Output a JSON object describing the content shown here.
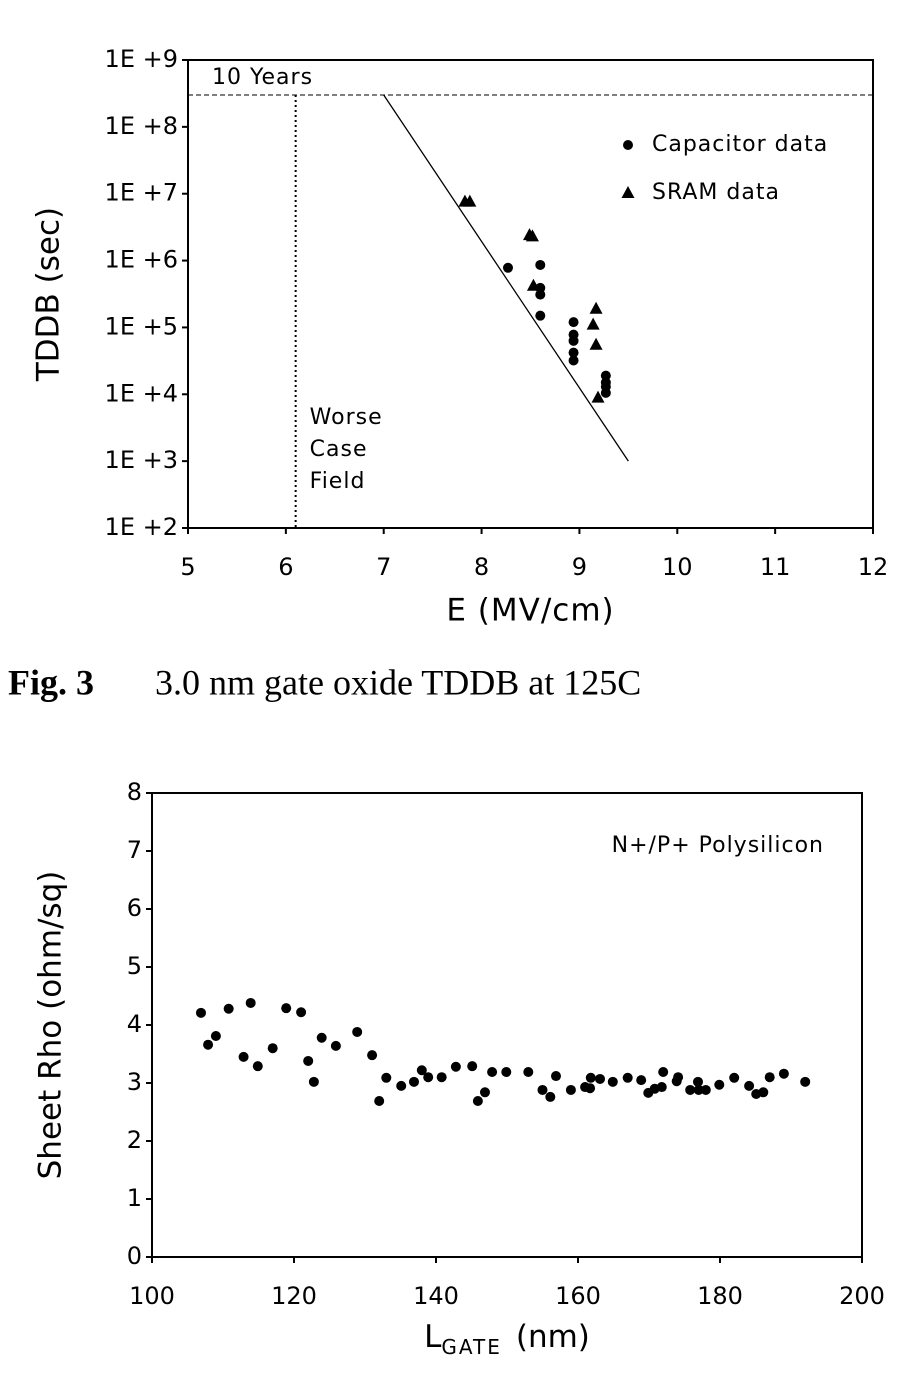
{
  "chart_data": [
    {
      "type": "scatter",
      "y_label": "TDDB (sec)",
      "x_label": "E  (MV/cm)",
      "xlim": [
        5,
        12
      ],
      "xticks": [
        5,
        6,
        7,
        8,
        9,
        10,
        11,
        12
      ],
      "yscale": "log",
      "ylim": [
        100,
        1000000000
      ],
      "yticks": [
        {
          "value": 100,
          "label": "1E +2"
        },
        {
          "value": 1000,
          "label": "1E +3"
        },
        {
          "value": 10000,
          "label": "1E +4"
        },
        {
          "value": 100000,
          "label": "1E +5"
        },
        {
          "value": 1000000,
          "label": "1E +6"
        },
        {
          "value": 10000000,
          "label": "1E +7"
        },
        {
          "value": 100000000,
          "label": "1E +8"
        },
        {
          "value": 1000000000,
          "label": "1E +9"
        }
      ],
      "legend": "upper right",
      "series": [
        {
          "name": "Capacitor data",
          "marker": "circle",
          "color": "#000000",
          "x": [
            8.27,
            8.6,
            8.6,
            8.6,
            8.6,
            8.94,
            8.94,
            8.94,
            8.94,
            8.94,
            9.27,
            9.27,
            9.27,
            9.27
          ],
          "values": [
            780000,
            860000,
            390000,
            310000,
            150000,
            120000,
            78000,
            63000,
            42000,
            32000,
            19000,
            15000,
            13000,
            10500
          ]
        },
        {
          "name": "SRAM data",
          "marker": "triangle",
          "color": "#000000",
          "x": [
            7.83,
            7.88,
            8.49,
            8.52,
            8.53,
            9.14,
            9.17,
            9.17,
            9.19
          ],
          "values": [
            7600000,
            7600000,
            2400000,
            2300000,
            420000,
            110000,
            190000,
            55000,
            8900
          ]
        }
      ],
      "reference_line": {
        "text": "10 Years",
        "y": 300000000
      },
      "vertical_line": {
        "lines": [
          "Worse",
          "Case",
          "Field"
        ],
        "x": 6.1
      },
      "fit_line": {
        "x": [
          7,
          9.5
        ],
        "y": [
          300000000,
          1000
        ]
      }
    },
    {
      "type": "scatter",
      "y_label": "Sheet Rho (ohm/sq)",
      "x_label": {
        "text": "L",
        "subscript": "GATE",
        "unit": "(nm)"
      },
      "xlim": [
        100,
        200
      ],
      "xticks": [
        100,
        120,
        140,
        160,
        180,
        200
      ],
      "ylim": [
        0,
        8
      ],
      "yticks": [
        0,
        1,
        2,
        3,
        4,
        5,
        6,
        7,
        8
      ],
      "annotation": "N+/P+ Polysilicon",
      "color": "#000000",
      "x": [
        106.9,
        107.9,
        109.0,
        110.8,
        112.9,
        113.9,
        114.9,
        117.0,
        118.9,
        121.0,
        122.0,
        122.8,
        123.9,
        125.9,
        128.9,
        131.0,
        132.0,
        133.0,
        135.1,
        136.9,
        138.0,
        138.9,
        140.8,
        142.8,
        145.1,
        145.9,
        146.9,
        147.9,
        149.9,
        153.0,
        155.0,
        156.1,
        156.9,
        159.0,
        161.0,
        161.7,
        161.8,
        163.1,
        164.9,
        167.0,
        168.9,
        169.9,
        170.8,
        171.8,
        172.0,
        173.9,
        174.1,
        175.8,
        176.9,
        177.0,
        178.0,
        179.9,
        182.0,
        184.1,
        185.1,
        186.1,
        187.0,
        189.0,
        192.0
      ],
      "values": [
        4.21,
        3.66,
        3.81,
        4.28,
        3.45,
        4.38,
        3.29,
        3.6,
        4.29,
        4.22,
        3.38,
        3.02,
        3.78,
        3.64,
        3.88,
        3.48,
        2.69,
        3.09,
        2.95,
        3.02,
        3.22,
        3.1,
        3.1,
        3.28,
        3.29,
        2.69,
        2.84,
        3.19,
        3.19,
        3.19,
        2.88,
        2.76,
        3.12,
        2.88,
        2.93,
        2.91,
        3.09,
        3.07,
        3.02,
        3.09,
        3.05,
        2.83,
        2.9,
        2.93,
        3.19,
        3.03,
        3.1,
        2.88,
        3.02,
        2.88,
        2.88,
        2.97,
        3.09,
        2.95,
        2.81,
        2.84,
        3.1,
        3.16,
        3.02
      ]
    }
  ],
  "caption": {
    "label": "Fig. 3",
    "text": "3.0 nm gate oxide TDDB at 125C"
  }
}
